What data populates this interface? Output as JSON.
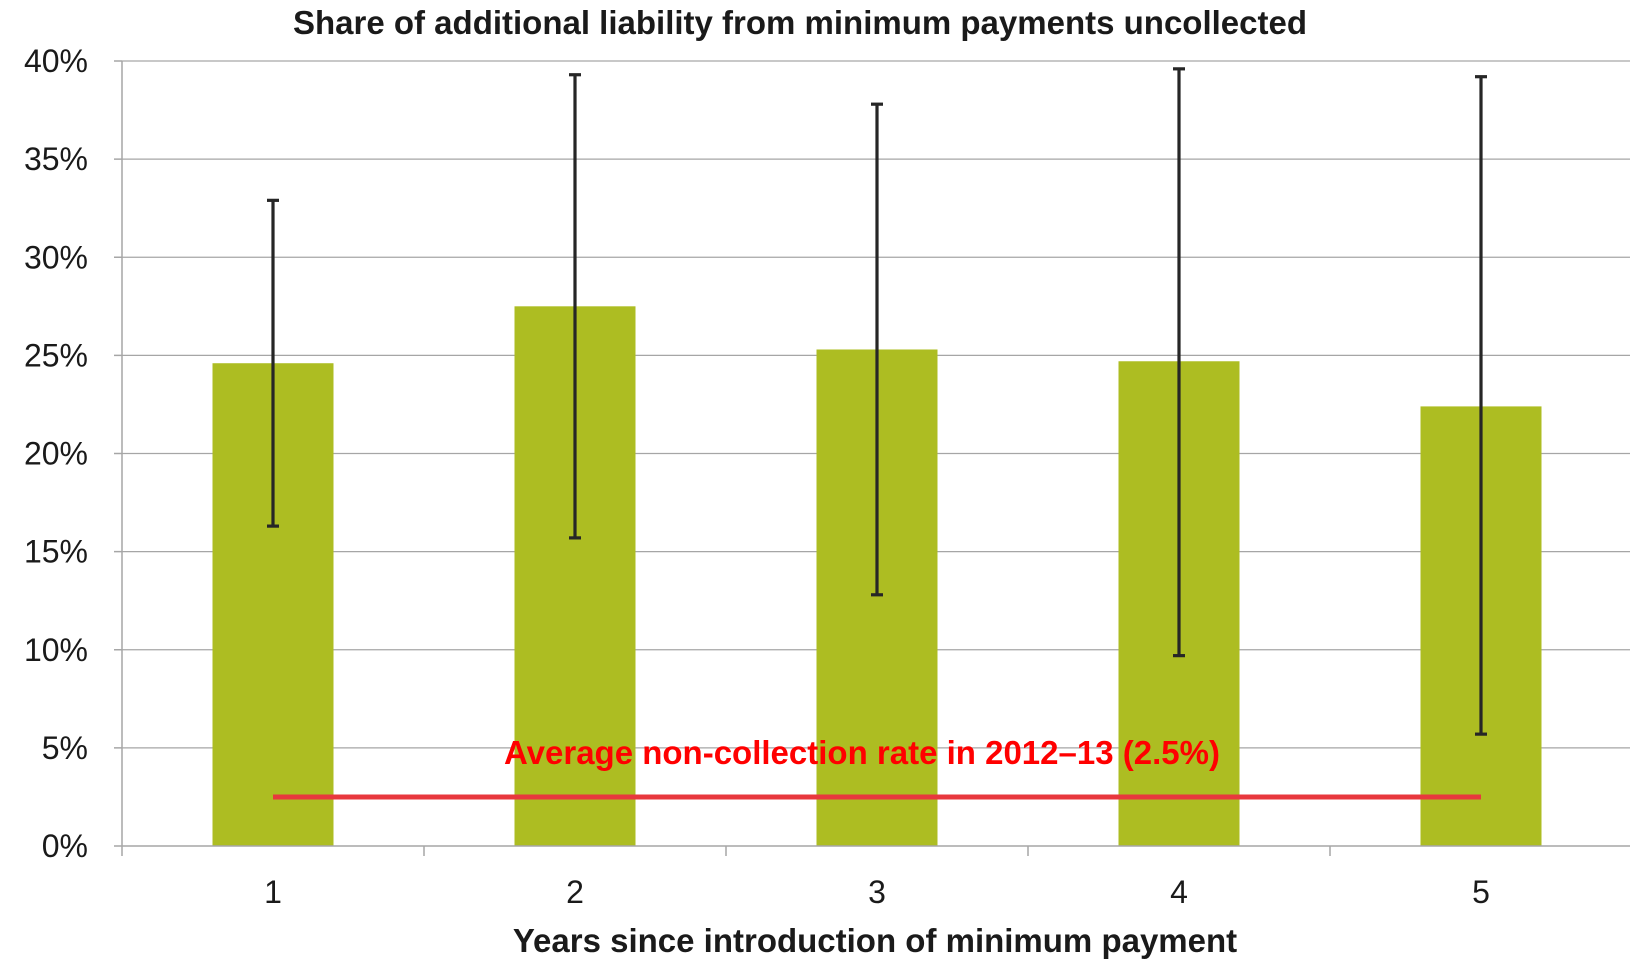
{
  "chart_data": {
    "type": "bar",
    "title": "Share of additional liability from minimum payments uncollected",
    "xlabel": "Years since introduction of minimum payment",
    "ylabel": "",
    "categories": [
      "1",
      "2",
      "3",
      "4",
      "5"
    ],
    "values": [
      24.6,
      27.5,
      25.3,
      24.7,
      22.4
    ],
    "error_low": [
      16.3,
      15.7,
      12.8,
      9.7,
      5.7
    ],
    "error_high": [
      32.9,
      39.3,
      37.8,
      39.6,
      39.2
    ],
    "ylim": [
      0,
      40
    ],
    "yticks": [
      {
        "value": 0,
        "label": "0%"
      },
      {
        "value": 5,
        "label": "5%"
      },
      {
        "value": 10,
        "label": "10%"
      },
      {
        "value": 15,
        "label": "15%"
      },
      {
        "value": 20,
        "label": "20%"
      },
      {
        "value": 25,
        "label": "25%"
      },
      {
        "value": 30,
        "label": "30%"
      },
      {
        "value": 35,
        "label": "35%"
      },
      {
        "value": 40,
        "label": "40%"
      }
    ],
    "grid": true,
    "reference_line": {
      "value": 2.5,
      "label": "Average non-collection rate in 2012–13 (2.5%)",
      "from_category": "1",
      "to_category": "5"
    },
    "colors": {
      "bar": "#adbd22",
      "error_bar": "#262626",
      "reference_line": "#e8383d",
      "reference_label": "#ff0000"
    }
  }
}
